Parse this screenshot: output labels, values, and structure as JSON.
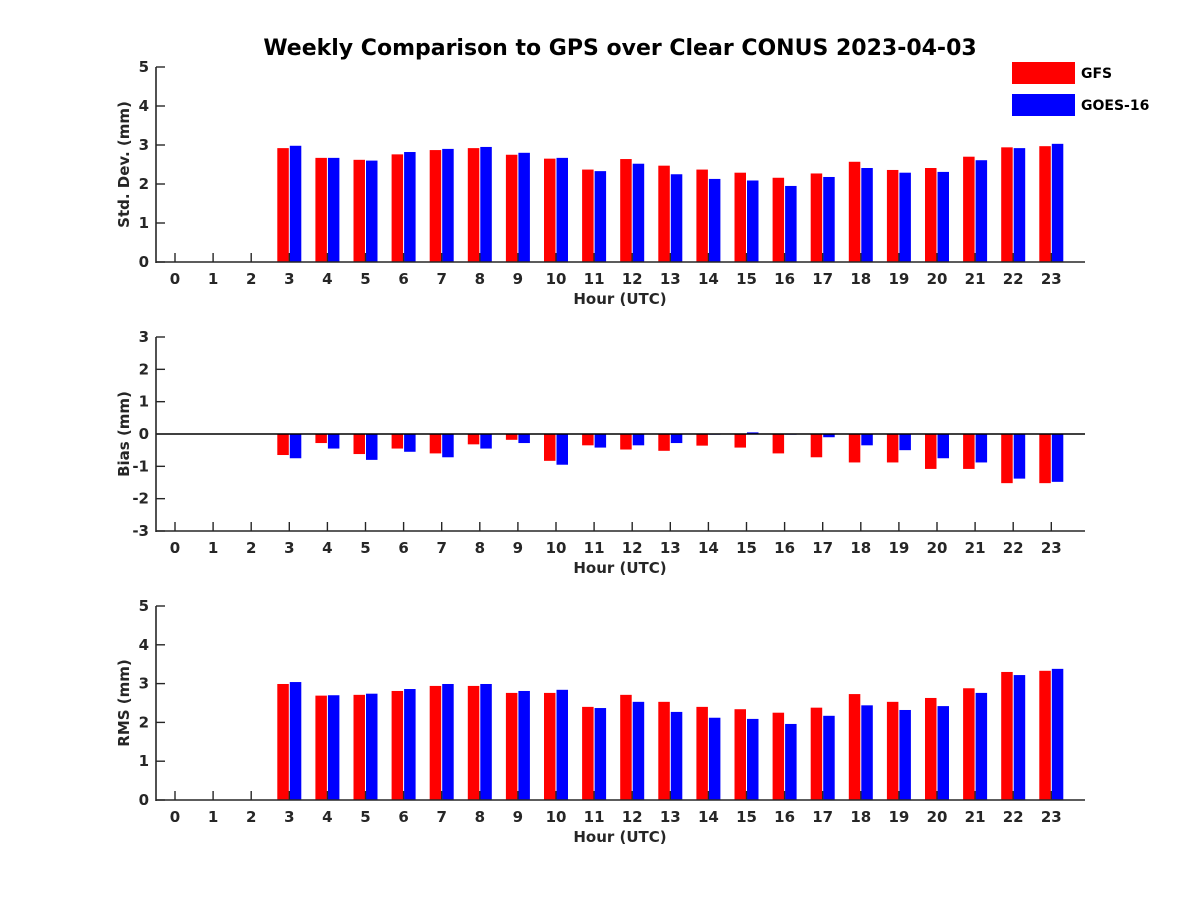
{
  "title": "Weekly Comparison to GPS over Clear CONUS 2023-04-03",
  "legend": {
    "placement": "top-right",
    "items": [
      {
        "label": "GFS",
        "color": "#ff0000"
      },
      {
        "label": "GOES-16",
        "color": "#0000ff"
      }
    ]
  },
  "chart_data": [
    {
      "type": "bar",
      "ylabel": "Std. Dev. (mm)",
      "xlabel": "Hour (UTC)",
      "ylim": [
        0,
        5
      ],
      "yticks": [
        "0",
        "1",
        "2",
        "3",
        "4",
        "5"
      ],
      "categories": [
        "0",
        "1",
        "2",
        "3",
        "4",
        "5",
        "6",
        "7",
        "8",
        "9",
        "10",
        "11",
        "12",
        "13",
        "14",
        "15",
        "16",
        "17",
        "18",
        "19",
        "20",
        "21",
        "22",
        "23"
      ],
      "series": [
        {
          "name": "GFS",
          "color": "#ff0000",
          "values": [
            null,
            null,
            null,
            2.92,
            2.67,
            2.62,
            2.76,
            2.87,
            2.92,
            2.75,
            2.65,
            2.37,
            2.64,
            2.47,
            2.37,
            2.29,
            2.16,
            2.27,
            2.57,
            2.36,
            2.41,
            2.7,
            2.94,
            2.97
          ]
        },
        {
          "name": "GOES-16",
          "color": "#0000ff",
          "values": [
            null,
            null,
            null,
            2.98,
            2.67,
            2.6,
            2.82,
            2.9,
            2.95,
            2.8,
            2.67,
            2.33,
            2.52,
            2.25,
            2.13,
            2.09,
            1.95,
            2.18,
            2.41,
            2.29,
            2.31,
            2.61,
            2.92,
            3.03
          ]
        }
      ]
    },
    {
      "type": "bar",
      "ylabel": "Bias (mm)",
      "xlabel": "Hour (UTC)",
      "ylim": [
        -3,
        3
      ],
      "yticks": [
        "-3",
        "-2",
        "-1",
        "0",
        "1",
        "2",
        "3"
      ],
      "categories": [
        "0",
        "1",
        "2",
        "3",
        "4",
        "5",
        "6",
        "7",
        "8",
        "9",
        "10",
        "11",
        "12",
        "13",
        "14",
        "15",
        "16",
        "17",
        "18",
        "19",
        "20",
        "21",
        "22",
        "23"
      ],
      "series": [
        {
          "name": "GFS",
          "color": "#ff0000",
          "values": [
            null,
            null,
            null,
            -0.65,
            -0.28,
            -0.62,
            -0.45,
            -0.6,
            -0.32,
            -0.18,
            -0.83,
            -0.35,
            -0.48,
            -0.52,
            -0.36,
            -0.42,
            -0.6,
            -0.72,
            -0.88,
            -0.88,
            -1.08,
            -1.08,
            -1.52,
            -1.52
          ]
        },
        {
          "name": "GOES-16",
          "color": "#0000ff",
          "values": [
            null,
            null,
            null,
            -0.75,
            -0.45,
            -0.8,
            -0.55,
            -0.72,
            -0.45,
            -0.28,
            -0.95,
            -0.42,
            -0.35,
            -0.28,
            -0.02,
            0.05,
            -0.02,
            -0.1,
            -0.35,
            -0.5,
            -0.75,
            -0.88,
            -1.38,
            -1.48
          ]
        }
      ]
    },
    {
      "type": "bar",
      "ylabel": "RMS (mm)",
      "xlabel": "Hour (UTC)",
      "ylim": [
        0,
        5
      ],
      "yticks": [
        "0",
        "1",
        "2",
        "3",
        "4",
        "5"
      ],
      "categories": [
        "0",
        "1",
        "2",
        "3",
        "4",
        "5",
        "6",
        "7",
        "8",
        "9",
        "10",
        "11",
        "12",
        "13",
        "14",
        "15",
        "16",
        "17",
        "18",
        "19",
        "20",
        "21",
        "22",
        "23"
      ],
      "series": [
        {
          "name": "GFS",
          "color": "#ff0000",
          "values": [
            null,
            null,
            null,
            2.99,
            2.69,
            2.71,
            2.81,
            2.94,
            2.94,
            2.76,
            2.76,
            2.4,
            2.71,
            2.53,
            2.4,
            2.34,
            2.25,
            2.38,
            2.73,
            2.53,
            2.63,
            2.88,
            3.3,
            3.33
          ]
        },
        {
          "name": "GOES-16",
          "color": "#0000ff",
          "values": [
            null,
            null,
            null,
            3.04,
            2.7,
            2.74,
            2.86,
            2.99,
            2.99,
            2.81,
            2.84,
            2.37,
            2.53,
            2.27,
            2.12,
            2.09,
            1.96,
            2.17,
            2.44,
            2.32,
            2.42,
            2.76,
            3.22,
            3.38
          ]
        }
      ]
    }
  ]
}
